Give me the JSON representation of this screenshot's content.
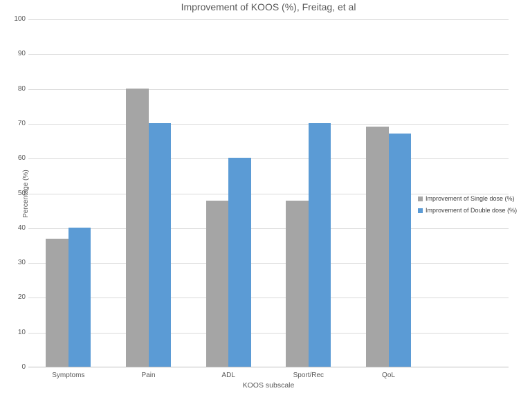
{
  "chart_data": {
    "type": "bar",
    "title": "Improvement of KOOS (%), Freitag, et al",
    "xlabel": "KOOS subscale",
    "ylabel": "Percentage (%)",
    "categories": [
      "Symptoms",
      "Pain",
      "ADL",
      "Sport/Rec",
      "QoL"
    ],
    "series": [
      {
        "name": "Improvement of Single dose (%)",
        "color": "#A5A5A5",
        "values": [
          36.7,
          80,
          47.8,
          47.8,
          69
        ]
      },
      {
        "name": "Improvement of Double dose (%)",
        "color": "#5B9BD5",
        "values": [
          40,
          70,
          60,
          70,
          67
        ]
      }
    ],
    "ylim": [
      0,
      100
    ],
    "ytick_step": 10,
    "ytick_labels": [
      "0",
      "10",
      "20",
      "30",
      "40",
      "50",
      "60",
      "70",
      "80",
      "90",
      "100"
    ],
    "grid": true,
    "legend_position": "right-overlay",
    "colors": {
      "gridline": "#d9d9d9",
      "axis_line": "#bfbfbf",
      "text": "#595959",
      "legend_text": "#404040",
      "background": "#ffffff"
    }
  }
}
